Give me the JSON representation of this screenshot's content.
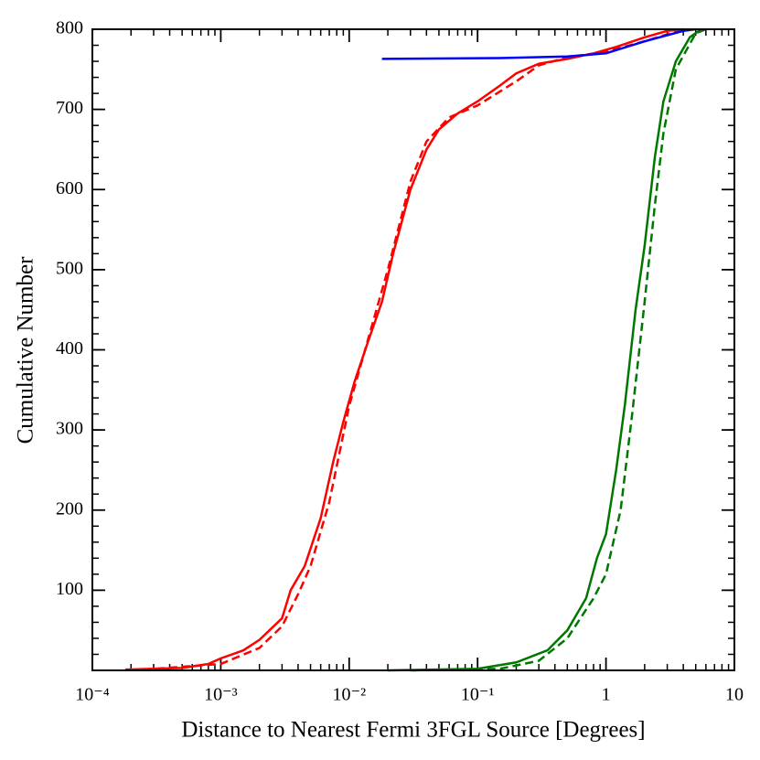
{
  "chart_data": {
    "type": "line",
    "xlabel": "Distance to Nearest Fermi 3FGL Source [Degrees]",
    "ylabel": "Cumulative Number",
    "xscale": "log",
    "xlim": [
      0.0001,
      10
    ],
    "ylim": [
      0,
      800
    ],
    "xticks": [
      {
        "value": 0.0001,
        "label": "10⁻⁴"
      },
      {
        "value": 0.001,
        "label": "10⁻³"
      },
      {
        "value": 0.01,
        "label": "10⁻²"
      },
      {
        "value": 0.1,
        "label": "10⁻¹"
      },
      1,
      10
    ],
    "yticks": [
      100,
      200,
      300,
      400,
      500,
      600,
      700,
      800
    ],
    "minor_ticks": true,
    "series": [
      {
        "color": "#ff0000",
        "linestyle": "solid",
        "x": [
          0.00018,
          0.0005,
          0.0008,
          0.001,
          0.0015,
          0.002,
          0.003,
          0.0035,
          0.0045,
          0.006,
          0.0075,
          0.009,
          0.011,
          0.014,
          0.018,
          0.022,
          0.03,
          0.04,
          0.05,
          0.07,
          0.1,
          0.15,
          0.2,
          0.3,
          0.5,
          0.8,
          1.2,
          2,
          3,
          4
        ],
        "values": [
          1,
          3,
          8,
          15,
          25,
          38,
          65,
          100,
          130,
          190,
          260,
          310,
          360,
          410,
          460,
          520,
          600,
          650,
          675,
          695,
          710,
          730,
          745,
          757,
          763,
          770,
          778,
          790,
          798,
          800
        ]
      },
      {
        "color": "#ff0000",
        "linestyle": "dashed",
        "x": [
          0.00025,
          0.001,
          0.002,
          0.003,
          0.004,
          0.005,
          0.007,
          0.01,
          0.02,
          0.03,
          0.04,
          0.06,
          0.1,
          0.2,
          0.3,
          0.5,
          1,
          2,
          4
        ],
        "values": [
          1,
          8,
          28,
          55,
          95,
          130,
          210,
          330,
          500,
          610,
          660,
          690,
          705,
          735,
          755,
          765,
          772,
          785,
          800
        ]
      },
      {
        "color": "#007800",
        "linestyle": "solid",
        "x": [
          0.02,
          0.1,
          0.2,
          0.35,
          0.5,
          0.7,
          0.85,
          1,
          1.2,
          1.4,
          1.7,
          2,
          2.4,
          2.8,
          3.5,
          4.5,
          5.5
        ],
        "values": [
          0,
          2,
          10,
          25,
          50,
          90,
          140,
          170,
          250,
          330,
          450,
          530,
          640,
          710,
          760,
          790,
          800
        ]
      },
      {
        "color": "#007800",
        "linestyle": "dashed",
        "x": [
          0.03,
          0.15,
          0.3,
          0.5,
          0.8,
          1,
          1.3,
          1.6,
          2,
          2.4,
          2.8,
          3.5,
          5,
          6
        ],
        "values": [
          0,
          2,
          12,
          40,
          90,
          120,
          200,
          320,
          460,
          580,
          670,
          750,
          795,
          800
        ]
      },
      {
        "color": "#0000ff",
        "linestyle": "solid",
        "x": [
          0.018,
          0.15,
          0.5,
          1,
          2,
          4,
          5
        ],
        "values": [
          763,
          764,
          766,
          770,
          785,
          798,
          800
        ]
      }
    ]
  }
}
